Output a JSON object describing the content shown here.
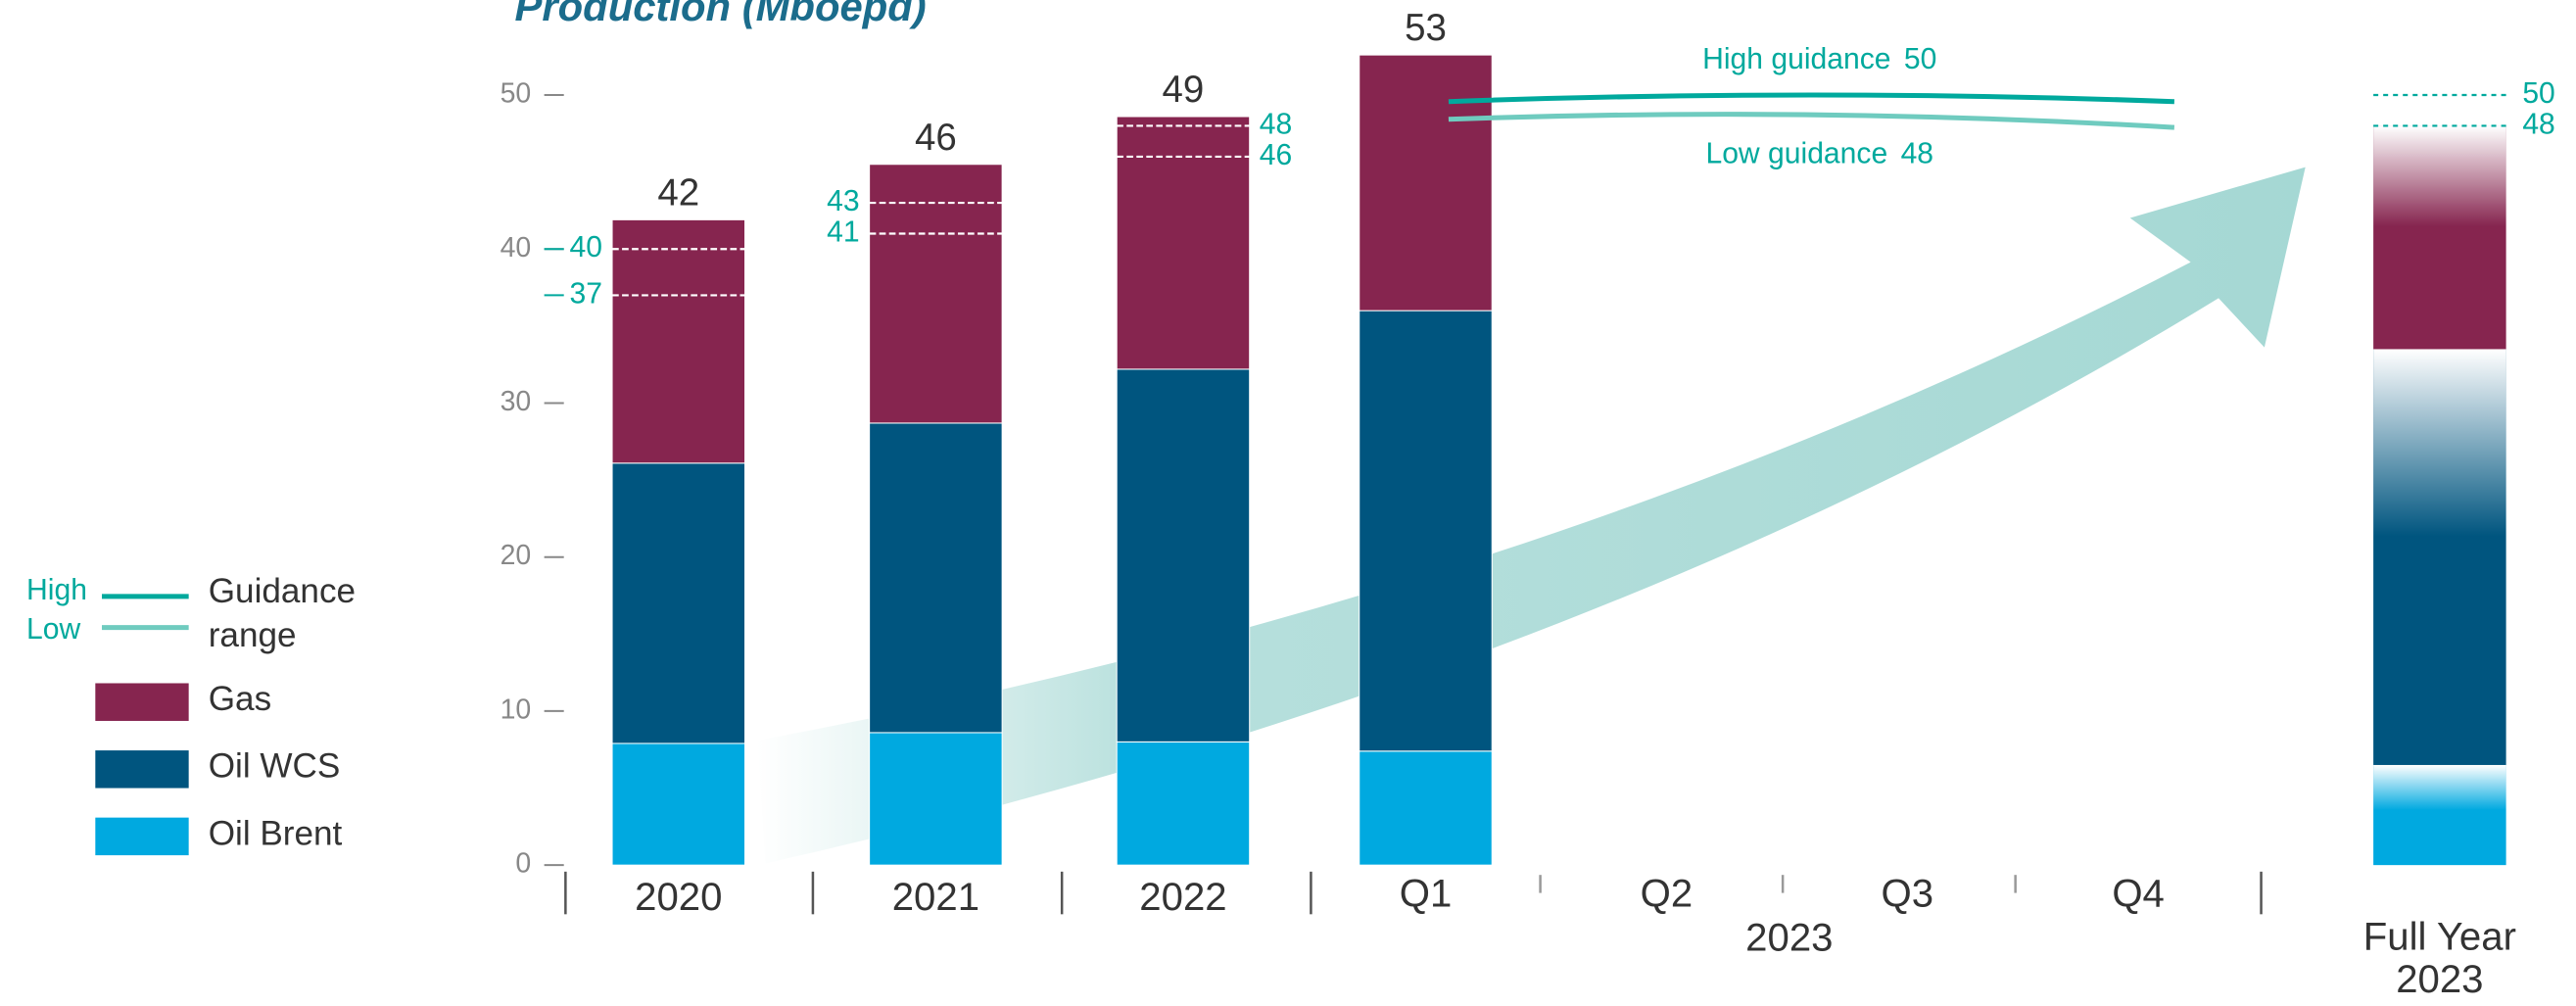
{
  "chart_data": {
    "type": "stacked_bar",
    "title": "Production (Mboepd)",
    "categories": [
      "2020",
      "2021",
      "2022",
      "Q1",
      "Q2",
      "Q3",
      "Q4",
      "Full Year 2023"
    ],
    "group_label": "2023",
    "series": [
      {
        "name": "Oil Brent",
        "color": "#00a9e0",
        "values": [
          7.9,
          8.6,
          8.0,
          7.4,
          null,
          null,
          null,
          6.5
        ]
      },
      {
        "name": "Oil WCS",
        "color": "#00557f",
        "values": [
          18.2,
          20.1,
          24.2,
          28.6,
          null,
          null,
          null,
          27.0
        ]
      },
      {
        "name": "Gas",
        "color": "#86254f",
        "values": [
          15.8,
          16.8,
          16.4,
          16.6,
          null,
          null,
          null,
          14.5
        ]
      }
    ],
    "totals": [
      42,
      46,
      49,
      53,
      null,
      null,
      null,
      null
    ],
    "guidance_high": [
      40,
      43,
      48,
      null,
      null,
      null,
      null,
      50
    ],
    "guidance_low": [
      37,
      41,
      46,
      null,
      null,
      null,
      null,
      48
    ],
    "guidance_2023": {
      "high": {
        "label": "High guidance",
        "value": 50,
        "color": "#00a99d"
      },
      "low": {
        "label": "Low guidance",
        "value": 48,
        "color": "#6fcbbf"
      }
    },
    "legend": {
      "high": "High",
      "low": "Low",
      "range": [
        "Guidance",
        "range"
      ]
    },
    "ylim": [
      0,
      55
    ],
    "yticks": [
      0,
      10,
      20,
      30,
      40,
      50
    ]
  }
}
